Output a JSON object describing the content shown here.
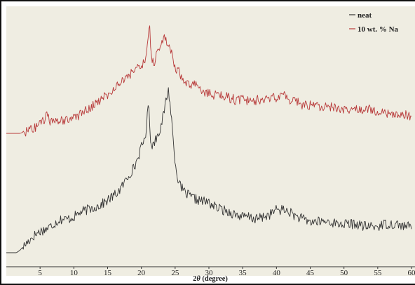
{
  "chart_data": {
    "type": "line",
    "xlabel": "2θ (degree)",
    "xlabel_prefix": "2",
    "xlabel_symbol": "θ",
    "xlabel_suffix": " (degree)",
    "xlim": [
      0,
      60
    ],
    "ylim": [
      0,
      100
    ],
    "x_ticks": [
      5,
      10,
      15,
      20,
      25,
      30,
      35,
      40,
      45,
      50,
      55,
      60
    ],
    "y_axis_labels_shown": false,
    "grid": false,
    "legend_position": "top-right",
    "series": [
      {
        "name": "neat",
        "color": "#333333",
        "x": [
          0,
          1.5,
          2,
          3,
          4,
          5,
          6,
          7,
          8,
          9,
          10,
          11,
          12,
          13,
          14,
          15,
          16,
          17,
          18,
          18.5,
          19,
          19.5,
          20,
          20.5,
          20.8,
          21.0,
          21.2,
          21.4,
          21.7,
          22,
          22.5,
          23,
          23.3,
          23.6,
          23.8,
          24.0,
          24.2,
          24.5,
          24.8,
          25.2,
          25.7,
          26.5,
          27.5,
          28.5,
          30,
          31,
          32,
          33,
          34,
          35,
          36,
          37,
          38,
          39,
          40,
          41,
          42,
          43,
          44,
          45,
          46,
          47,
          48,
          49,
          50,
          51,
          52,
          53,
          54,
          55,
          56,
          57,
          58,
          59,
          60
        ],
        "y": [
          0,
          0,
          1,
          4,
          7,
          9,
          10,
          12,
          14,
          14,
          15,
          17,
          18,
          19,
          20,
          22,
          24,
          27,
          32,
          34,
          36,
          40,
          44,
          48,
          53,
          63,
          56,
          46,
          45,
          47,
          50,
          54,
          58,
          63,
          66,
          68,
          64,
          55,
          44,
          34,
          28,
          25,
          23,
          22,
          21,
          19,
          18,
          17,
          16,
          15,
          15,
          14,
          15,
          16,
          18,
          18,
          17,
          15,
          14,
          13,
          13,
          13,
          13,
          12,
          12,
          12,
          12,
          11,
          11,
          11,
          12,
          12,
          12,
          11,
          11
        ]
      },
      {
        "name": "10 wt. % Na",
        "color": "#b83a3a",
        "x": [
          0,
          2,
          3,
          4,
          5,
          5.5,
          6,
          6.5,
          7,
          8,
          9,
          10,
          11,
          12,
          13,
          14,
          15,
          16,
          17,
          18,
          19,
          20,
          20.5,
          20.8,
          21.0,
          21.2,
          21.4,
          21.6,
          21.9,
          22.2,
          22.5,
          22.8,
          23.1,
          23.4,
          23.7,
          24.0,
          24.3,
          24.6,
          25,
          25.5,
          26,
          27,
          28,
          29,
          30,
          31,
          32,
          33,
          34,
          35,
          36,
          37,
          38,
          39,
          40,
          41,
          42,
          43,
          44,
          45,
          46,
          47,
          48,
          49,
          50,
          51,
          52,
          53,
          54,
          55,
          56,
          57,
          58,
          59,
          60
        ],
        "y": [
          50,
          50,
          51,
          52,
          54,
          55,
          57,
          55,
          54,
          55,
          56,
          57,
          58,
          60,
          62,
          64,
          66,
          69,
          72,
          74,
          76,
          79,
          80,
          84,
          90,
          95,
          85,
          80,
          79,
          82,
          84,
          86,
          88,
          90,
          89,
          87,
          85,
          82,
          78,
          76,
          73,
          71,
          70,
          68,
          67,
          66,
          66,
          65,
          64,
          64,
          64,
          64,
          64,
          65,
          65,
          66,
          64,
          63,
          62,
          62,
          61,
          61,
          61,
          60,
          60,
          60,
          60,
          60,
          60,
          59,
          59,
          58,
          58,
          58,
          57
        ]
      }
    ]
  },
  "colors": {
    "background": "#ffffff",
    "plot_background": "#efede2",
    "frame": "#111111",
    "neat_line": "#333333",
    "na_line": "#b83a3a"
  }
}
